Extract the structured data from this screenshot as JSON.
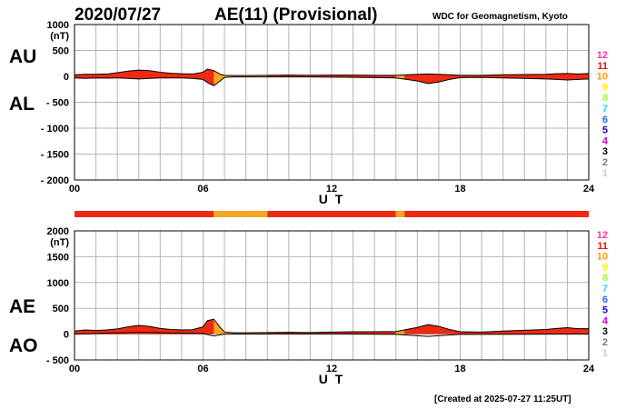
{
  "header": {
    "date": "2020/07/27",
    "title": "AE(11) (Provisional)",
    "source": "WDC for Geomagnetism, Kyoto"
  },
  "footer": {
    "created": "[Created at 2025-07-27 11:25UT]"
  },
  "legend": {
    "labels": [
      "12",
      "11",
      "10",
      "9",
      "8",
      "7",
      "6",
      "5",
      "4",
      "3",
      "2",
      "1"
    ],
    "colors": [
      "#ff3399",
      "#ee1100",
      "#ff9900",
      "#ffee00",
      "#99ff33",
      "#33ccff",
      "#2266ff",
      "#2200cc",
      "#cc00cc",
      "#000000",
      "#777777",
      "#cccccc"
    ]
  },
  "colors": {
    "eleven": "#ee2a12",
    "ten": "#f5a623",
    "line": "#000000"
  },
  "chart_data": [
    {
      "type": "area",
      "panel": "AU-AL",
      "side_labels": [
        "AU",
        "AL"
      ],
      "ylabel": "(nT)",
      "xlabel": "U T",
      "xlim": [
        0,
        24
      ],
      "ylim": [
        -2000,
        1000
      ],
      "y_ticks": [
        "1000",
        "500",
        "0",
        "- 500",
        "- 1000",
        "- 1500",
        "- 2000"
      ],
      "y_tick_values": [
        1000,
        500,
        0,
        -500,
        -1000,
        -1500,
        -2000
      ],
      "x_ticks": [
        "00",
        "06",
        "12",
        "18",
        "24"
      ],
      "x_tick_values": [
        0,
        6,
        12,
        18,
        24
      ],
      "series": [
        {
          "key": "AU",
          "x": [
            0,
            0.5,
            1,
            1.5,
            2,
            2.5,
            3,
            3.5,
            4,
            4.5,
            5,
            5.5,
            6,
            6.2,
            6.5,
            6.8,
            7,
            7.5,
            8,
            9,
            10,
            11,
            12,
            13,
            14,
            15,
            15.5,
            16,
            16.5,
            17,
            17.5,
            18,
            19,
            20,
            21,
            22,
            22.5,
            23,
            23.5,
            24
          ],
          "y": [
            30,
            40,
            40,
            45,
            70,
            100,
            120,
            110,
            80,
            60,
            50,
            45,
            80,
            140,
            110,
            40,
            20,
            15,
            15,
            20,
            25,
            20,
            25,
            25,
            20,
            20,
            30,
            40,
            45,
            40,
            30,
            20,
            20,
            30,
            35,
            40,
            50,
            55,
            45,
            55
          ]
        },
        {
          "key": "AL",
          "x": [
            0,
            0.5,
            1,
            1.5,
            2,
            2.5,
            3,
            3.5,
            4,
            4.5,
            5,
            5.5,
            6,
            6.2,
            6.5,
            6.8,
            7,
            7.5,
            8,
            9,
            10,
            11,
            12,
            13,
            14,
            15,
            15.5,
            16,
            16.5,
            17,
            17.5,
            18,
            19,
            20,
            21,
            22,
            22.5,
            23,
            23.5,
            24
          ],
          "y": [
            -30,
            -40,
            -30,
            -35,
            -30,
            -40,
            -50,
            -40,
            -30,
            -30,
            -30,
            -40,
            -60,
            -120,
            -180,
            -90,
            -20,
            -10,
            -10,
            -10,
            -10,
            -10,
            -15,
            -20,
            -25,
            -30,
            -60,
            -90,
            -140,
            -110,
            -60,
            -25,
            -20,
            -30,
            -40,
            -50,
            -60,
            -70,
            -60,
            -50
          ]
        }
      ]
    },
    {
      "type": "area",
      "panel": "AE-AO",
      "side_labels": [
        "AE",
        "AO"
      ],
      "ylabel": "(nT)",
      "xlabel": "U T",
      "xlim": [
        0,
        24
      ],
      "ylim": [
        -500,
        2000
      ],
      "y_ticks": [
        "2000",
        "1500",
        "1000",
        "500",
        "0",
        "- 500"
      ],
      "y_tick_values": [
        2000,
        1500,
        1000,
        500,
        0,
        -500
      ],
      "x_ticks": [
        "00",
        "06",
        "12",
        "18",
        "24"
      ],
      "x_tick_values": [
        0,
        6,
        12,
        18,
        24
      ],
      "series": [
        {
          "key": "AE",
          "x": [
            0,
            0.5,
            1,
            1.5,
            2,
            2.5,
            3,
            3.5,
            4,
            4.5,
            5,
            5.5,
            6,
            6.2,
            6.5,
            6.8,
            7,
            7.5,
            8,
            9,
            10,
            11,
            12,
            13,
            14,
            15,
            15.5,
            16,
            16.5,
            17,
            17.5,
            18,
            19,
            20,
            21,
            22,
            22.5,
            23,
            23.5,
            24
          ],
          "y": [
            60,
            80,
            70,
            80,
            100,
            140,
            170,
            150,
            110,
            90,
            80,
            85,
            140,
            260,
            290,
            130,
            40,
            25,
            25,
            30,
            35,
            30,
            40,
            45,
            45,
            50,
            90,
            130,
            185,
            150,
            90,
            45,
            40,
            60,
            75,
            90,
            110,
            125,
            105,
            105
          ]
        },
        {
          "key": "AO",
          "x": [
            0,
            3,
            6,
            6.5,
            7,
            9,
            12,
            15,
            16.5,
            18,
            21,
            24
          ],
          "y": [
            0,
            35,
            10,
            -35,
            0,
            5,
            5,
            -5,
            -45,
            -5,
            -3,
            2
          ]
        }
      ]
    }
  ],
  "station_bar": {
    "segments": [
      {
        "from": 0,
        "to": 6.5,
        "value": "11"
      },
      {
        "from": 6.5,
        "to": 9.0,
        "value": "10"
      },
      {
        "from": 9.0,
        "to": 15.0,
        "value": "11"
      },
      {
        "from": 15.0,
        "to": 15.4,
        "value": "10"
      },
      {
        "from": 15.4,
        "to": 24,
        "value": "11"
      }
    ]
  }
}
